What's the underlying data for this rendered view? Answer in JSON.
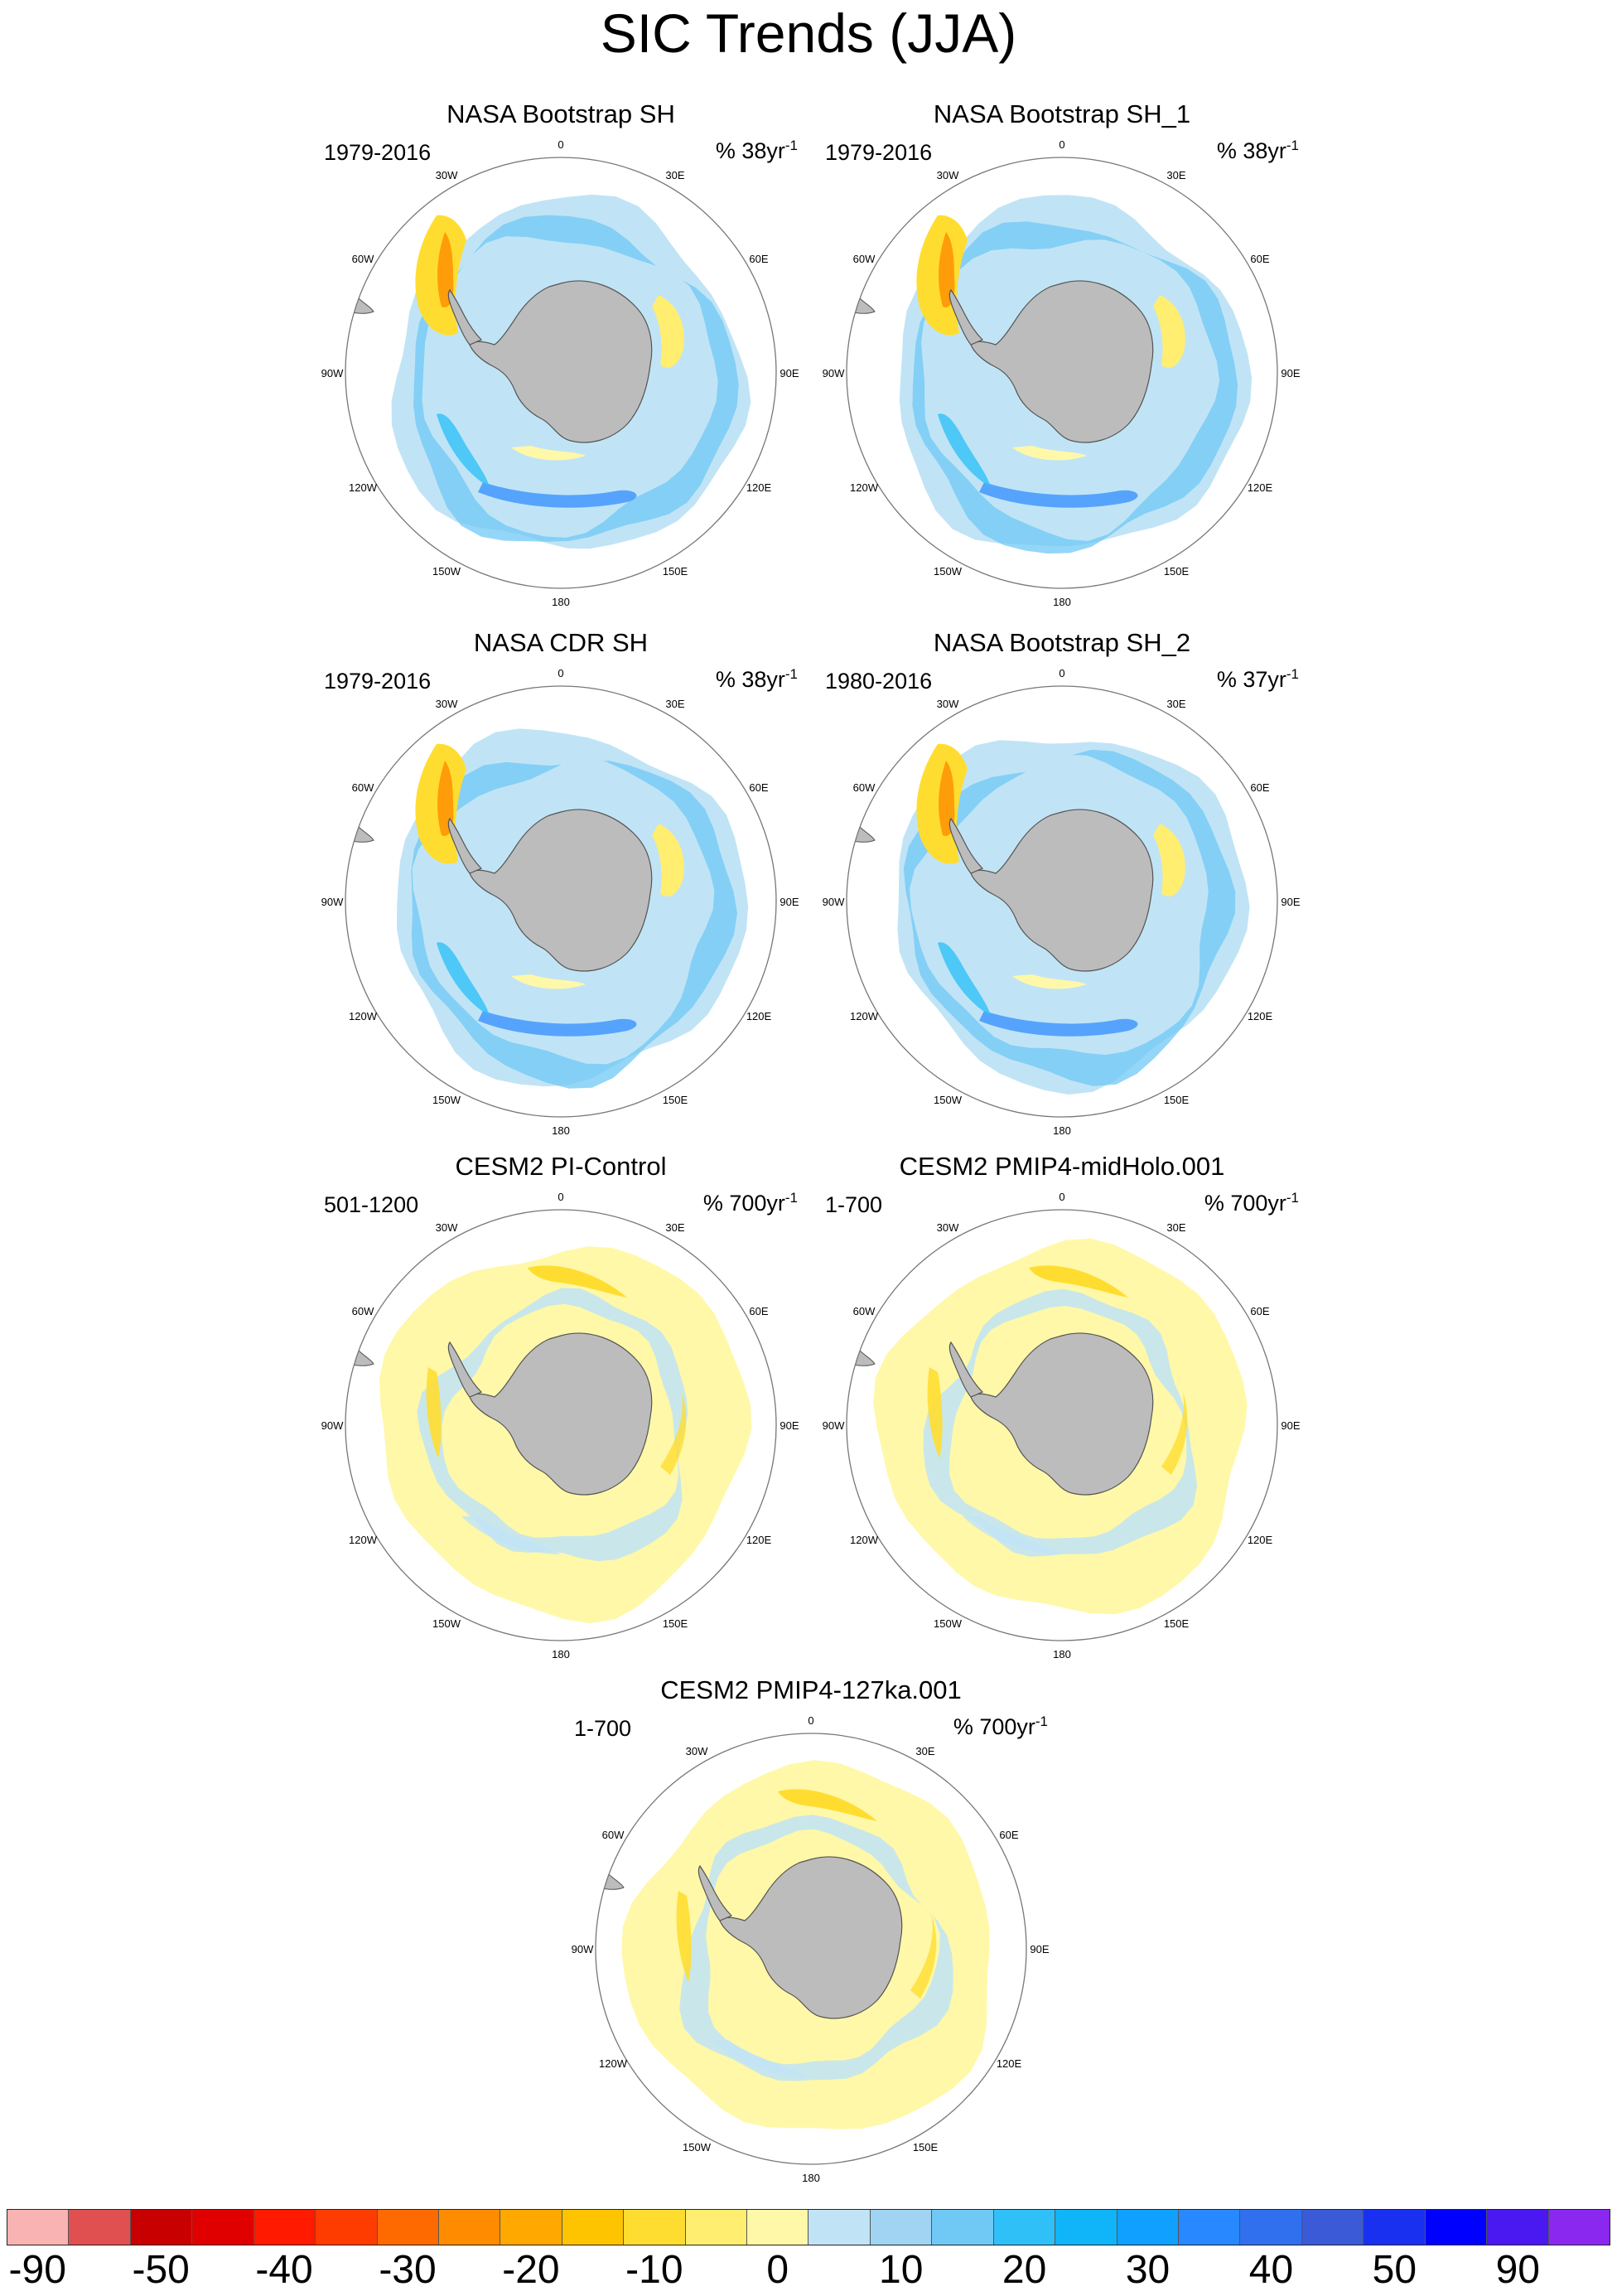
{
  "title": "SIC Trends (JJA)",
  "lon_labels": [
    "0",
    "30E",
    "60E",
    "90E",
    "120E",
    "150E",
    "180",
    "150W",
    "120W",
    "90W",
    "60W",
    "30W"
  ],
  "panels": [
    {
      "title": "NASA Bootstrap SH",
      "period": "1979-2016",
      "units": "% 38yr",
      "units_exp": "-1",
      "style": "obs"
    },
    {
      "title": "NASA Bootstrap SH_1",
      "period": "1979-2016",
      "units": "% 38yr",
      "units_exp": "-1",
      "style": "obs"
    },
    {
      "title": "NASA CDR SH",
      "period": "1979-2016",
      "units": "% 38yr",
      "units_exp": "-1",
      "style": "obs"
    },
    {
      "title": "NASA Bootstrap SH_2",
      "period": "1980-2016",
      "units": "% 37yr",
      "units_exp": "-1",
      "style": "obs"
    },
    {
      "title": "CESM2 PI-Control",
      "period": "501-1200",
      "units": "% 700yr",
      "units_exp": "-1",
      "style": "model"
    },
    {
      "title": "CESM2 PMIP4-midHolo.001",
      "period": "1-700",
      "units": "% 700yr",
      "units_exp": "-1",
      "style": "model"
    },
    {
      "title": "CESM2 PMIP4-127ka.001",
      "period": "1-700",
      "units": "% 700yr",
      "units_exp": "-1",
      "style": "model"
    }
  ],
  "colorbar": {
    "colors": [
      "#f9b3b3",
      "#e05050",
      "#c80000",
      "#e00000",
      "#ff1a00",
      "#ff3c00",
      "#ff6a00",
      "#ff8c00",
      "#ffa800",
      "#ffc400",
      "#ffdd30",
      "#ffee70",
      "#fff8a8",
      "#c0e4f6",
      "#a0d4f2",
      "#70c8f4",
      "#30c0f8",
      "#10b4f8",
      "#10a0ff",
      "#2888ff",
      "#3070ee",
      "#3a5ad8",
      "#1a30f0",
      "#0000ff",
      "#4a18f0",
      "#8a28f0"
    ],
    "labels": [
      "-90",
      "-50",
      "-40",
      "-30",
      "-20",
      "-10",
      "0",
      "10",
      "20",
      "30",
      "40",
      "50",
      "90"
    ]
  }
}
